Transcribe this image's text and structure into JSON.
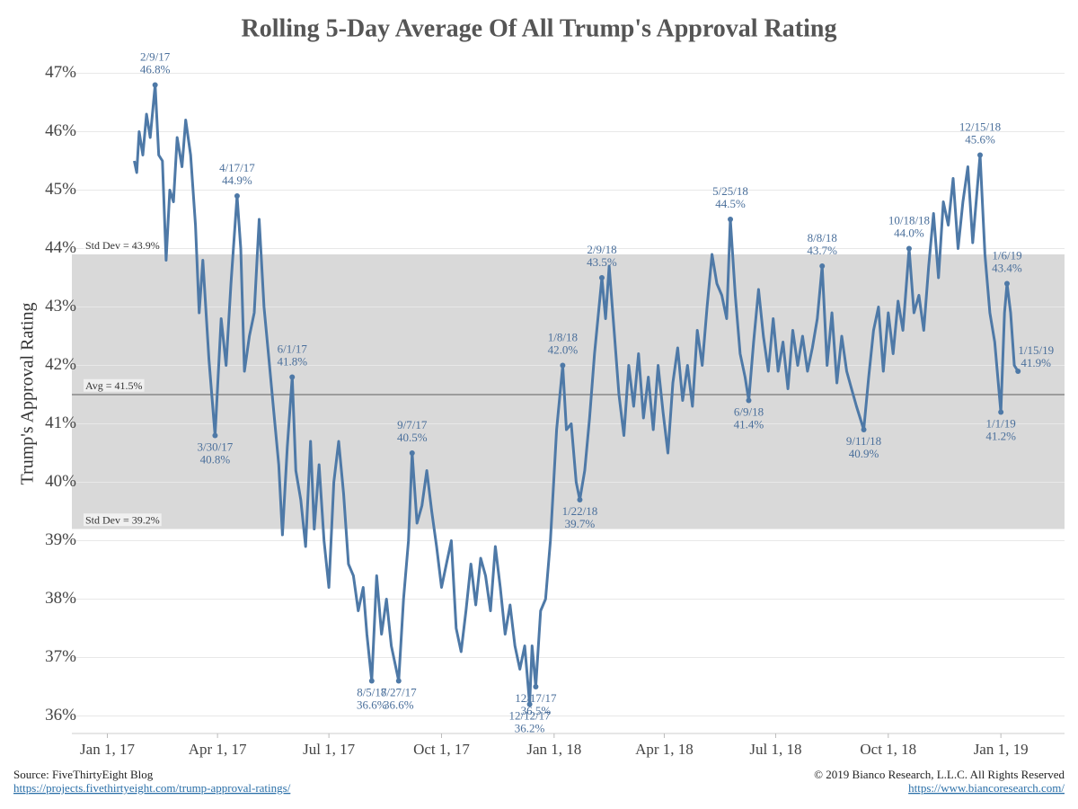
{
  "chart_data": {
    "type": "line",
    "title": "Rolling 5-Day Average Of All Trump's Approval Rating",
    "y_label": "Trump's Approval Rating",
    "xlim": [
      "2016-12-03",
      "2019-02-22"
    ],
    "xticks": [
      {
        "value": "2017-01-01",
        "label": "Jan 1, 17"
      },
      {
        "value": "2017-04-01",
        "label": "Apr 1, 17"
      },
      {
        "value": "2017-07-01",
        "label": "Jul 1, 17"
      },
      {
        "value": "2017-10-01",
        "label": "Oct 1, 17"
      },
      {
        "value": "2018-01-01",
        "label": "Jan 1, 18"
      },
      {
        "value": "2018-04-01",
        "label": "Apr 1, 18"
      },
      {
        "value": "2018-07-01",
        "label": "Jul 1, 18"
      },
      {
        "value": "2018-10-01",
        "label": "Oct 1, 18"
      },
      {
        "value": "2019-01-01",
        "label": "Jan 1, 19"
      }
    ],
    "ylim": [
      35.7,
      47.3
    ],
    "yticks": [
      {
        "value": 36,
        "label": "36%"
      },
      {
        "value": 37,
        "label": "37%"
      },
      {
        "value": 38,
        "label": "38%"
      },
      {
        "value": 39,
        "label": "39%"
      },
      {
        "value": 40,
        "label": "40%"
      },
      {
        "value": 41,
        "label": "41%"
      },
      {
        "value": 42,
        "label": "42%"
      },
      {
        "value": 43,
        "label": "43%"
      },
      {
        "value": 44,
        "label": "44%"
      },
      {
        "value": 45,
        "label": "45%"
      },
      {
        "value": 46,
        "label": "46%"
      },
      {
        "value": 47,
        "label": "47%"
      }
    ],
    "grid": true,
    "color": "#4e79a7",
    "reference_lines": [
      {
        "label": "Std Dev = 43.9%",
        "value": 43.9
      },
      {
        "label": "Avg = 41.5%",
        "value": 41.5
      },
      {
        "label": "Std Dev = 39.2%",
        "value": 39.2
      }
    ],
    "x": [
      "2017-01-23",
      "2017-01-25",
      "2017-01-27",
      "2017-01-30",
      "2017-02-02",
      "2017-02-05",
      "2017-02-09",
      "2017-02-12",
      "2017-02-15",
      "2017-02-18",
      "2017-02-21",
      "2017-02-24",
      "2017-02-27",
      "2017-03-03",
      "2017-03-06",
      "2017-03-10",
      "2017-03-14",
      "2017-03-17",
      "2017-03-20",
      "2017-03-25",
      "2017-03-30",
      "2017-04-04",
      "2017-04-08",
      "2017-04-12",
      "2017-04-17",
      "2017-04-20",
      "2017-04-23",
      "2017-04-27",
      "2017-05-01",
      "2017-05-05",
      "2017-05-09",
      "2017-05-13",
      "2017-05-17",
      "2017-05-21",
      "2017-05-24",
      "2017-05-28",
      "2017-06-01",
      "2017-06-04",
      "2017-06-08",
      "2017-06-12",
      "2017-06-16",
      "2017-06-19",
      "2017-06-23",
      "2017-06-27",
      "2017-07-01",
      "2017-07-05",
      "2017-07-09",
      "2017-07-13",
      "2017-07-17",
      "2017-07-21",
      "2017-07-25",
      "2017-07-29",
      "2017-08-01",
      "2017-08-05",
      "2017-08-09",
      "2017-08-13",
      "2017-08-17",
      "2017-08-21",
      "2017-08-27",
      "2017-08-31",
      "2017-09-04",
      "2017-09-07",
      "2017-09-11",
      "2017-09-15",
      "2017-09-19",
      "2017-09-23",
      "2017-09-27",
      "2017-10-01",
      "2017-10-05",
      "2017-10-09",
      "2017-10-13",
      "2017-10-17",
      "2017-10-21",
      "2017-10-25",
      "2017-10-29",
      "2017-11-02",
      "2017-11-06",
      "2017-11-10",
      "2017-11-14",
      "2017-11-18",
      "2017-11-22",
      "2017-11-26",
      "2017-11-30",
      "2017-12-04",
      "2017-12-08",
      "2017-12-12",
      "2017-12-14",
      "2017-12-17",
      "2017-12-21",
      "2017-12-25",
      "2017-12-29",
      "2018-01-03",
      "2018-01-08",
      "2018-01-11",
      "2018-01-15",
      "2018-01-19",
      "2018-01-22",
      "2018-01-26",
      "2018-01-30",
      "2018-02-03",
      "2018-02-09",
      "2018-02-12",
      "2018-02-15",
      "2018-02-19",
      "2018-02-23",
      "2018-02-27",
      "2018-03-03",
      "2018-03-07",
      "2018-03-11",
      "2018-03-15",
      "2018-03-19",
      "2018-03-23",
      "2018-03-27",
      "2018-03-31",
      "2018-04-04",
      "2018-04-08",
      "2018-04-12",
      "2018-04-16",
      "2018-04-20",
      "2018-04-24",
      "2018-04-28",
      "2018-05-02",
      "2018-05-06",
      "2018-05-10",
      "2018-05-14",
      "2018-05-18",
      "2018-05-22",
      "2018-05-25",
      "2018-05-29",
      "2018-06-02",
      "2018-06-06",
      "2018-06-09",
      "2018-06-13",
      "2018-06-17",
      "2018-06-21",
      "2018-06-25",
      "2018-06-29",
      "2018-07-03",
      "2018-07-07",
      "2018-07-11",
      "2018-07-15",
      "2018-07-19",
      "2018-07-23",
      "2018-07-27",
      "2018-07-31",
      "2018-08-04",
      "2018-08-08",
      "2018-08-12",
      "2018-08-16",
      "2018-08-20",
      "2018-08-24",
      "2018-08-28",
      "2018-09-01",
      "2018-09-05",
      "2018-09-11",
      "2018-09-15",
      "2018-09-19",
      "2018-09-23",
      "2018-09-27",
      "2018-10-01",
      "2018-10-05",
      "2018-10-09",
      "2018-10-13",
      "2018-10-18",
      "2018-10-22",
      "2018-10-26",
      "2018-10-30",
      "2018-11-03",
      "2018-11-07",
      "2018-11-11",
      "2018-11-15",
      "2018-11-19",
      "2018-11-23",
      "2018-11-27",
      "2018-12-01",
      "2018-12-05",
      "2018-12-09",
      "2018-12-15",
      "2018-12-19",
      "2018-12-23",
      "2018-12-27",
      "2019-01-01",
      "2019-01-04",
      "2019-01-06",
      "2019-01-09",
      "2019-01-12",
      "2019-01-15"
    ],
    "values": [
      45.5,
      45.3,
      46.0,
      45.6,
      46.3,
      45.9,
      46.8,
      45.6,
      45.5,
      43.8,
      45.0,
      44.8,
      45.9,
      45.4,
      46.2,
      45.6,
      44.4,
      42.9,
      43.8,
      42.1,
      40.8,
      42.8,
      42.0,
      43.4,
      44.9,
      44.0,
      41.9,
      42.5,
      42.9,
      44.5,
      43.0,
      42.1,
      41.2,
      40.3,
      39.1,
      40.6,
      41.8,
      40.2,
      39.7,
      38.9,
      40.7,
      39.2,
      40.3,
      39.0,
      38.2,
      40.0,
      40.7,
      39.8,
      38.6,
      38.4,
      37.8,
      38.2,
      37.4,
      36.6,
      38.4,
      37.4,
      38.0,
      37.2,
      36.6,
      38.0,
      39.0,
      40.5,
      39.3,
      39.6,
      40.2,
      39.5,
      38.9,
      38.2,
      38.6,
      39.0,
      37.5,
      37.1,
      37.8,
      38.6,
      37.9,
      38.7,
      38.4,
      37.8,
      38.9,
      38.2,
      37.4,
      37.9,
      37.2,
      36.8,
      37.2,
      36.2,
      37.2,
      36.5,
      37.8,
      38.0,
      39.0,
      40.9,
      42.0,
      40.9,
      41.0,
      40.0,
      39.7,
      40.2,
      41.1,
      42.2,
      43.5,
      42.8,
      43.7,
      42.6,
      41.5,
      40.8,
      42.0,
      41.3,
      42.2,
      41.1,
      41.8,
      40.9,
      42.0,
      41.2,
      40.5,
      41.7,
      42.3,
      41.4,
      42.0,
      41.3,
      42.6,
      42.0,
      43.0,
      43.9,
      43.4,
      43.2,
      42.8,
      44.5,
      43.2,
      42.2,
      41.8,
      41.4,
      42.4,
      43.3,
      42.5,
      41.9,
      42.8,
      41.9,
      42.4,
      41.6,
      42.6,
      42.0,
      42.5,
      41.9,
      42.3,
      42.8,
      43.7,
      42.0,
      42.9,
      41.7,
      42.5,
      41.9,
      41.6,
      41.3,
      40.9,
      41.8,
      42.6,
      43.0,
      41.9,
      42.9,
      42.2,
      43.1,
      42.6,
      44.0,
      42.9,
      43.2,
      42.6,
      43.7,
      44.6,
      43.5,
      44.8,
      44.4,
      45.2,
      44.0,
      44.8,
      45.4,
      44.1,
      45.6,
      43.9,
      42.9,
      42.4,
      41.2,
      42.9,
      43.4,
      42.9,
      42.0,
      41.9
    ],
    "annotations": [
      {
        "x": "2017-02-09",
        "date_label": "2/9/17",
        "value": 46.8,
        "value_label": "46.8%"
      },
      {
        "x": "2017-03-30",
        "date_label": "3/30/17",
        "value": 40.8,
        "value_label": "40.8%"
      },
      {
        "x": "2017-04-17",
        "date_label": "4/17/17",
        "value": 44.9,
        "value_label": "44.9%"
      },
      {
        "x": "2017-06-01",
        "date_label": "6/1/17",
        "value": 41.8,
        "value_label": "41.8%"
      },
      {
        "x": "2017-08-05",
        "date_label": "8/5/17",
        "value": 36.6,
        "value_label": "36.6%"
      },
      {
        "x": "2017-08-27",
        "date_label": "8/27/17",
        "value": 36.6,
        "value_label": "36.6%"
      },
      {
        "x": "2017-09-07",
        "date_label": "9/7/17",
        "value": 40.5,
        "value_label": "40.5%"
      },
      {
        "x": "2017-12-12",
        "date_label": "12/12/17",
        "value": 36.2,
        "value_label": "36.2%"
      },
      {
        "x": "2017-12-17",
        "date_label": "12/17/17",
        "value": 36.5,
        "value_label": "36.5%"
      },
      {
        "x": "2018-01-08",
        "date_label": "1/8/18",
        "value": 42.0,
        "value_label": "42.0%"
      },
      {
        "x": "2018-01-22",
        "date_label": "1/22/18",
        "value": 39.7,
        "value_label": "39.7%"
      },
      {
        "x": "2018-02-09",
        "date_label": "2/9/18",
        "value": 43.5,
        "value_label": "43.5%"
      },
      {
        "x": "2018-05-25",
        "date_label": "5/25/18",
        "value": 44.5,
        "value_label": "44.5%"
      },
      {
        "x": "2018-06-09",
        "date_label": "6/9/18",
        "value": 41.4,
        "value_label": "41.4%"
      },
      {
        "x": "2018-08-08",
        "date_label": "8/8/18",
        "value": 43.7,
        "value_label": "43.7%"
      },
      {
        "x": "2018-09-11",
        "date_label": "9/11/18",
        "value": 40.9,
        "value_label": "40.9%"
      },
      {
        "x": "2018-10-18",
        "date_label": "10/18/18",
        "value": 44.0,
        "value_label": "44.0%"
      },
      {
        "x": "2018-12-15",
        "date_label": "12/15/18",
        "value": 45.6,
        "value_label": "45.6%"
      },
      {
        "x": "2019-01-01",
        "date_label": "1/1/19",
        "value": 41.2,
        "value_label": "41.2%"
      },
      {
        "x": "2019-01-06",
        "date_label": "1/6/19",
        "value": 43.4,
        "value_label": "43.4%"
      },
      {
        "x": "2019-01-15",
        "date_label": "1/15/19",
        "value": 41.9,
        "value_label": "41.9%"
      }
    ],
    "source": "Source: FiveThirtyEight Blog",
    "source_url": "https://projects.fivethirtyeight.com/trump-approval-ratings/",
    "copyright": "© 2019 Bianco Research, L.L.C. All Rights Reserved",
    "copyright_url": "https://www.biancoresearch.com/"
  }
}
